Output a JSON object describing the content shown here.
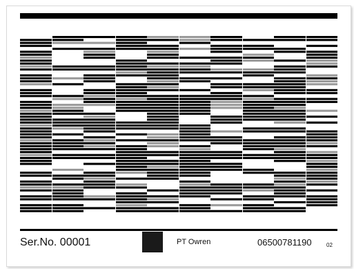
{
  "card": {
    "serial_label": "Ser.No. 00001",
    "brand": "PT Owren",
    "number": "06500781190",
    "suffix": "02"
  },
  "pattern": {
    "rows": 60,
    "columns": 10,
    "colors": {
      "black": "#000000",
      "gray": "#9a9a9a",
      "white": "#ffffff"
    }
  }
}
